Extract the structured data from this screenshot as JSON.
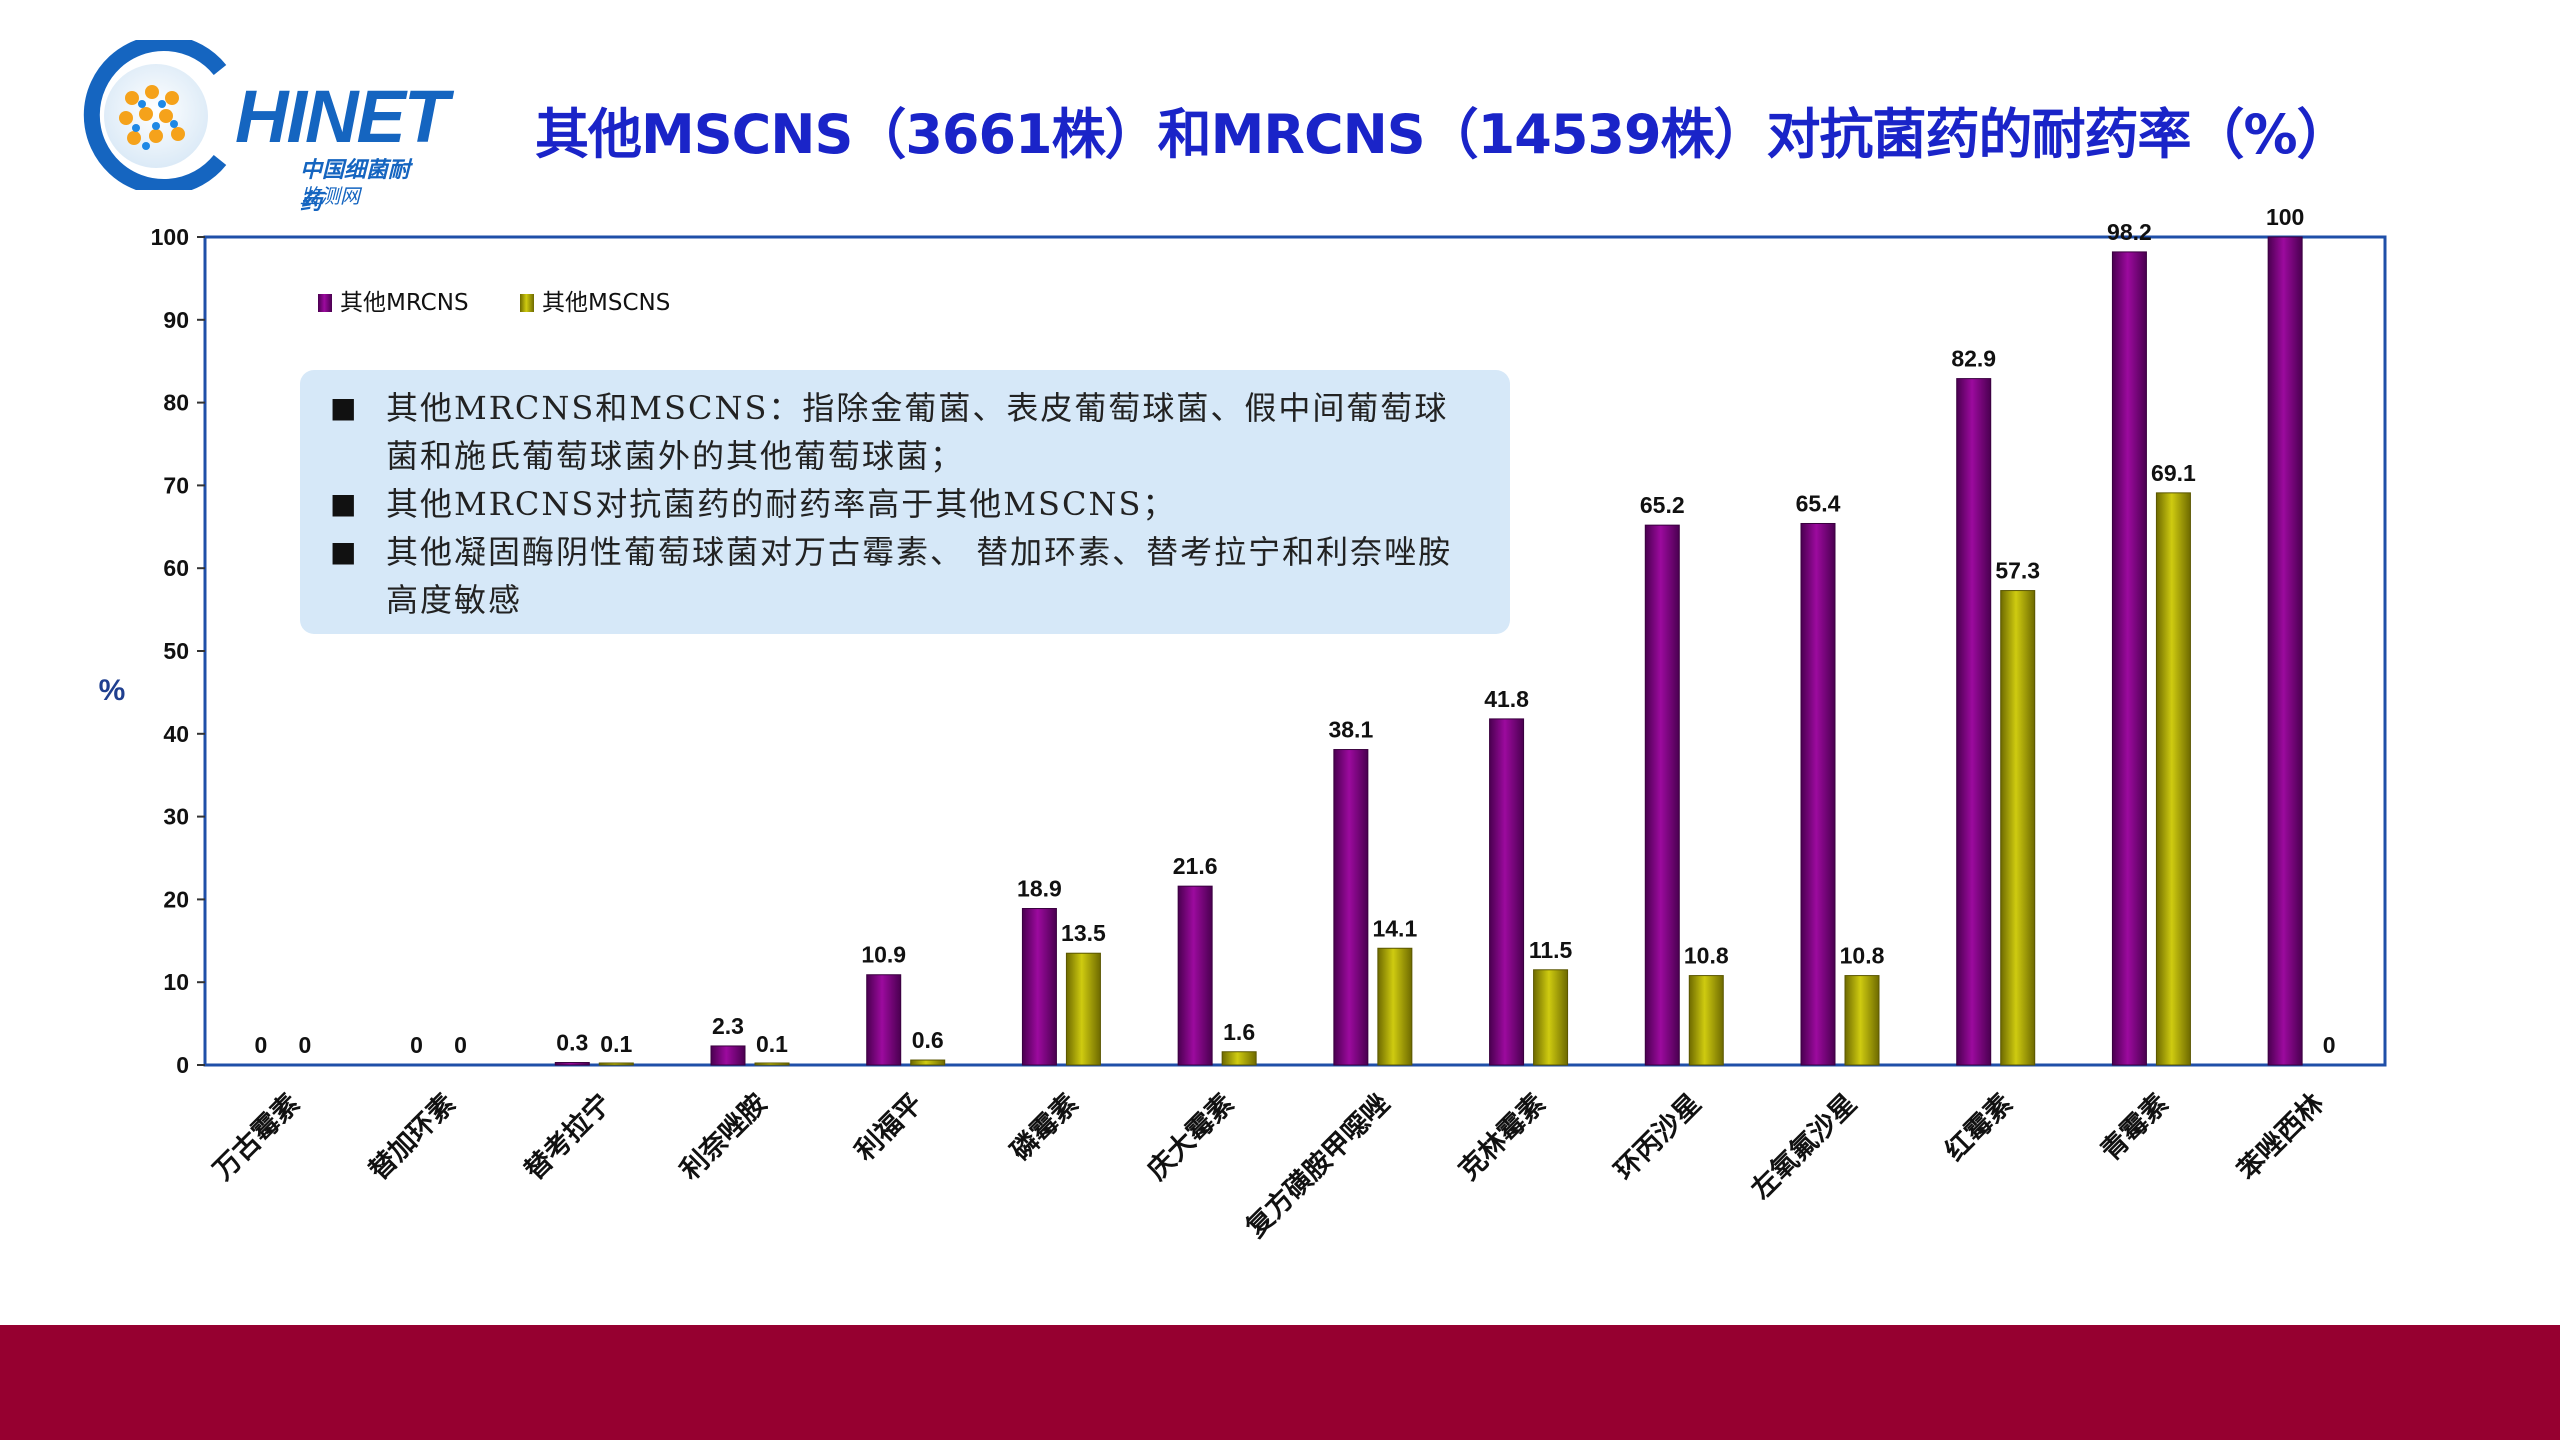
{
  "logo": {
    "brand": "HINET",
    "sub1": "中国细菌耐药",
    "sub2": "监测网"
  },
  "title": "其他MSCNS（3661株）和MRCNS（14539株）对抗菌药的耐药率（%）",
  "notes": [
    "其他MRCNS和MSCNS：指除金葡菌、表皮葡萄球菌、假中间葡萄球菌和施氏葡萄球菌外的其他葡萄球菌；",
    "其他MRCNS对抗菌药的耐药率高于其他MSCNS；",
    "其他凝固酶阴性葡萄球菌对万古霉素、 替加环素、替考拉宁和利奈唑胺高度敏感"
  ],
  "note_bullet": "■",
  "colors": {
    "mrcns": "#9c0a9e",
    "mscns": "#cfcb10",
    "frame": "#1f4fa8",
    "footer": "#960030",
    "title": "#1a24c8"
  },
  "chart_data": {
    "type": "bar",
    "title": "",
    "ylabel": "%",
    "xlabel": "",
    "ylim": [
      0,
      100
    ],
    "yticks": [
      0,
      10,
      20,
      30,
      40,
      50,
      60,
      70,
      80,
      90,
      100
    ],
    "legend_position": "top-left",
    "categories": [
      "万古霉素",
      "替加环素",
      "替考拉宁",
      "利奈唑胺",
      "利福平",
      "磷霉素",
      "庆大霉素",
      "复方磺胺甲噁唑",
      "克林霉素",
      "环丙沙星",
      "左氧氟沙星",
      "红霉素",
      "青霉素",
      "苯唑西林"
    ],
    "series": [
      {
        "name": "其他MRCNS",
        "values": [
          0,
          0,
          0.3,
          2.3,
          10.9,
          18.9,
          21.6,
          38.1,
          41.8,
          65.2,
          65.4,
          82.9,
          98.2,
          100
        ],
        "labels": [
          "0",
          "0",
          "0.3",
          "2.3",
          "10.9",
          "18.9",
          "21.6",
          "38.1",
          "41.8",
          "65.2",
          "65.4",
          "82.9",
          "98.2",
          "100"
        ]
      },
      {
        "name": "其他MSCNS",
        "values": [
          0,
          0,
          0.1,
          0.1,
          0.6,
          13.5,
          1.6,
          14.1,
          11.5,
          10.8,
          10.8,
          57.3,
          69.1,
          0
        ],
        "labels": [
          "0",
          "0",
          "0.1",
          "0.1",
          "0.6",
          "13.5",
          "1.6",
          "14.1",
          "11.5",
          "10.8",
          "10.8",
          "57.3",
          "69.1",
          "0"
        ]
      }
    ]
  }
}
